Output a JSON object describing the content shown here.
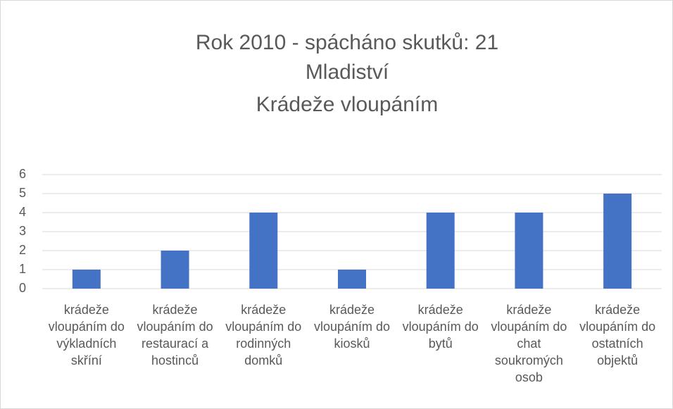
{
  "chart_data": {
    "type": "bar",
    "title": [
      "Rok 2010 - spácháno skutků: 21",
      "Mladiství",
      "Krádeže vloupáním"
    ],
    "categories": [
      "krádeže vloupáním do výkladních skříní",
      "krádeže vloupáním do restaurací a hostinců",
      "krádeže vloupáním do rodinných domků",
      "krádeže vloupáním do kiosků",
      "krádeže vloupáním do bytů",
      "krádeže vloupáním do chat soukromých osob",
      "krádeže vloupáním do ostatních objektů"
    ],
    "values": [
      1,
      2,
      4,
      1,
      4,
      4,
      5
    ],
    "color": "#4472c4",
    "ylim": [
      0,
      6
    ],
    "yticks": [
      0,
      1,
      2,
      3,
      4,
      5,
      6
    ],
    "grid": true
  }
}
